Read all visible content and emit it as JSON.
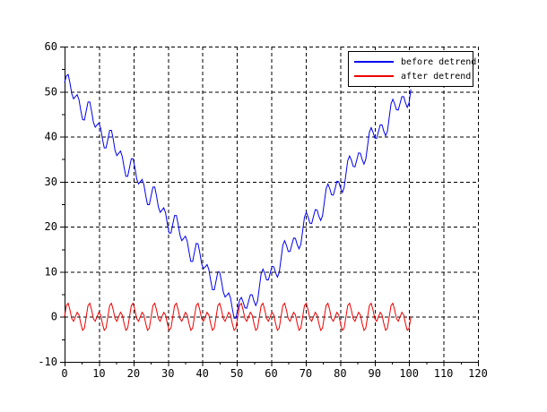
{
  "chart_data": {
    "type": "line",
    "title": "",
    "xlabel": "",
    "ylabel": "",
    "xlim": [
      0,
      120
    ],
    "ylim": [
      -10,
      60
    ],
    "x_ticks": [
      0,
      10,
      20,
      30,
      40,
      50,
      60,
      70,
      80,
      90,
      100,
      110,
      120
    ],
    "y_ticks": [
      -10,
      0,
      10,
      20,
      30,
      40,
      50,
      60
    ],
    "x_minor_tick_step": 5,
    "y_minor_tick_step": 5,
    "grid": true,
    "grid_style": "dashed",
    "grid_color": "#000000",
    "axis_color": "#000000",
    "tick_label_color": "#000000",
    "legend_position": "top-right",
    "series": [
      {
        "name": "before detrend",
        "color": "#0000ee",
        "x_start": 0,
        "x_step": 0.5236,
        "values": [
          52,
          53.5,
          53.8,
          51.9,
          49.5,
          48.4,
          48.9,
          49.3,
          48.2,
          45.8,
          43.8,
          43.7,
          45.7,
          47.7,
          47.7,
          45.6,
          43.2,
          42.1,
          42.6,
          43,
          41.9,
          39.5,
          37.5,
          37.5,
          39.4,
          41.4,
          41.4,
          39.4,
          36.9,
          35.8,
          36.3,
          36.8,
          35.6,
          33.2,
          31.2,
          31.2,
          33.1,
          35.1,
          35.1,
          33.1,
          30.6,
          29.5,
          30,
          30.5,
          29.3,
          26.9,
          24.9,
          24.9,
          26.9,
          28.8,
          28.8,
          26.8,
          24.4,
          23.2,
          23.7,
          24.2,
          23.1,
          20.6,
          18.6,
          18.6,
          20.6,
          22.5,
          22.5,
          20.5,
          18.1,
          16.9,
          17.4,
          17.9,
          16.8,
          14.4,
          12.3,
          12.3,
          14.3,
          16.3,
          16.2,
          14.2,
          11.8,
          10.7,
          11.1,
          11.6,
          10.5,
          8.1,
          6,
          6,
          8,
          10,
          9.9,
          7.9,
          5.5,
          4.4,
          4.8,
          5.3,
          4.2,
          1.8,
          -0.3,
          -0.3,
          1.7,
          3.7,
          4.3,
          3.3,
          2,
          1.9,
          3.4,
          4.9,
          4.9,
          3.5,
          2.5,
          3.5,
          6.6,
          9.6,
          10.6,
          9.6,
          8.2,
          8.2,
          9.7,
          11.2,
          11.1,
          9.8,
          8.8,
          9.8,
          12.8,
          15.9,
          16.9,
          15.9,
          14.5,
          14.5,
          16,
          17.5,
          17.4,
          16,
          15.1,
          16.1,
          19.1,
          22.1,
          23.2,
          22.2,
          20.8,
          20.7,
          22.3,
          23.8,
          23.7,
          22.3,
          21.4,
          22.4,
          25.4,
          28.4,
          29.5,
          28.5,
          27.1,
          27,
          28.5,
          30.1,
          30,
          28.6,
          27.6,
          28.7,
          31.7,
          34.7,
          35.7,
          34.8,
          33.4,
          33.3,
          34.8,
          36.4,
          36.3,
          34.9,
          33.9,
          35,
          38,
          41,
          42,
          41,
          39.7,
          39.6,
          41.1,
          42.6,
          42.6,
          41.2,
          40.2,
          41.2,
          44.3,
          47.3,
          48.3,
          47.3,
          46,
          45.9,
          47.4,
          48.9,
          48.9,
          47.5,
          46.5,
          47.5,
          50.5
        ]
      },
      {
        "name": "after detrend",
        "color": "#ee0000",
        "x_start": 0,
        "x_step": 0.5236,
        "values": [
          0,
          2.5,
          3,
          1.5,
          -0.4,
          -1,
          0,
          1,
          0.4,
          -1.5,
          -3,
          -2.5,
          0,
          2.5,
          3,
          1.5,
          -0.4,
          -1,
          0,
          1,
          0.4,
          -1.5,
          -3,
          -2.5,
          0,
          2.5,
          3,
          1.5,
          -0.4,
          -1,
          0,
          1,
          0.4,
          -1.5,
          -3,
          -2.5,
          0,
          2.5,
          3,
          1.5,
          -0.4,
          -1,
          0,
          1,
          0.4,
          -1.5,
          -3,
          -2.5,
          0,
          2.5,
          3,
          1.5,
          -0.4,
          -1,
          0,
          1,
          0.4,
          -1.5,
          -3,
          -2.5,
          0,
          2.5,
          3,
          1.5,
          -0.4,
          -1,
          0,
          1,
          0.4,
          -1.5,
          -3,
          -2.5,
          0,
          2.5,
          3,
          1.5,
          -0.4,
          -1,
          0,
          1,
          0.4,
          -1.5,
          -3,
          -2.5,
          0,
          2.5,
          3,
          1.5,
          -0.4,
          -1,
          0,
          1,
          0.4,
          -1.5,
          -3,
          -2.5,
          0,
          2.5,
          3,
          1.5,
          -0.4,
          -1,
          0,
          1,
          0.4,
          -1.5,
          -3,
          -2.5,
          0,
          2.5,
          3,
          1.5,
          -0.4,
          -1,
          0,
          1,
          0.4,
          -1.5,
          -3,
          -2.5,
          0,
          2.5,
          3,
          1.5,
          -0.4,
          -1,
          0,
          1,
          0.4,
          -1.5,
          -3,
          -2.5,
          0,
          2.5,
          3,
          1.5,
          -0.4,
          -1,
          0,
          1,
          0.4,
          -1.5,
          -3,
          -2.5,
          0,
          2.5,
          3,
          1.5,
          -0.4,
          -1,
          0,
          1,
          0.4,
          -1.5,
          -3,
          -2.5,
          0,
          2.5,
          3,
          1.5,
          -0.4,
          -1,
          0,
          1,
          0.4,
          -1.5,
          -3,
          -2.5,
          0,
          2.5,
          3,
          1.5,
          -0.4,
          -1,
          0,
          1,
          0.4,
          -1.5,
          -3,
          -2.5,
          0,
          2.5,
          3,
          1.5,
          -0.4,
          -1,
          0,
          1,
          0.4,
          -1.5,
          -3,
          -2.5,
          0
        ]
      }
    ]
  }
}
